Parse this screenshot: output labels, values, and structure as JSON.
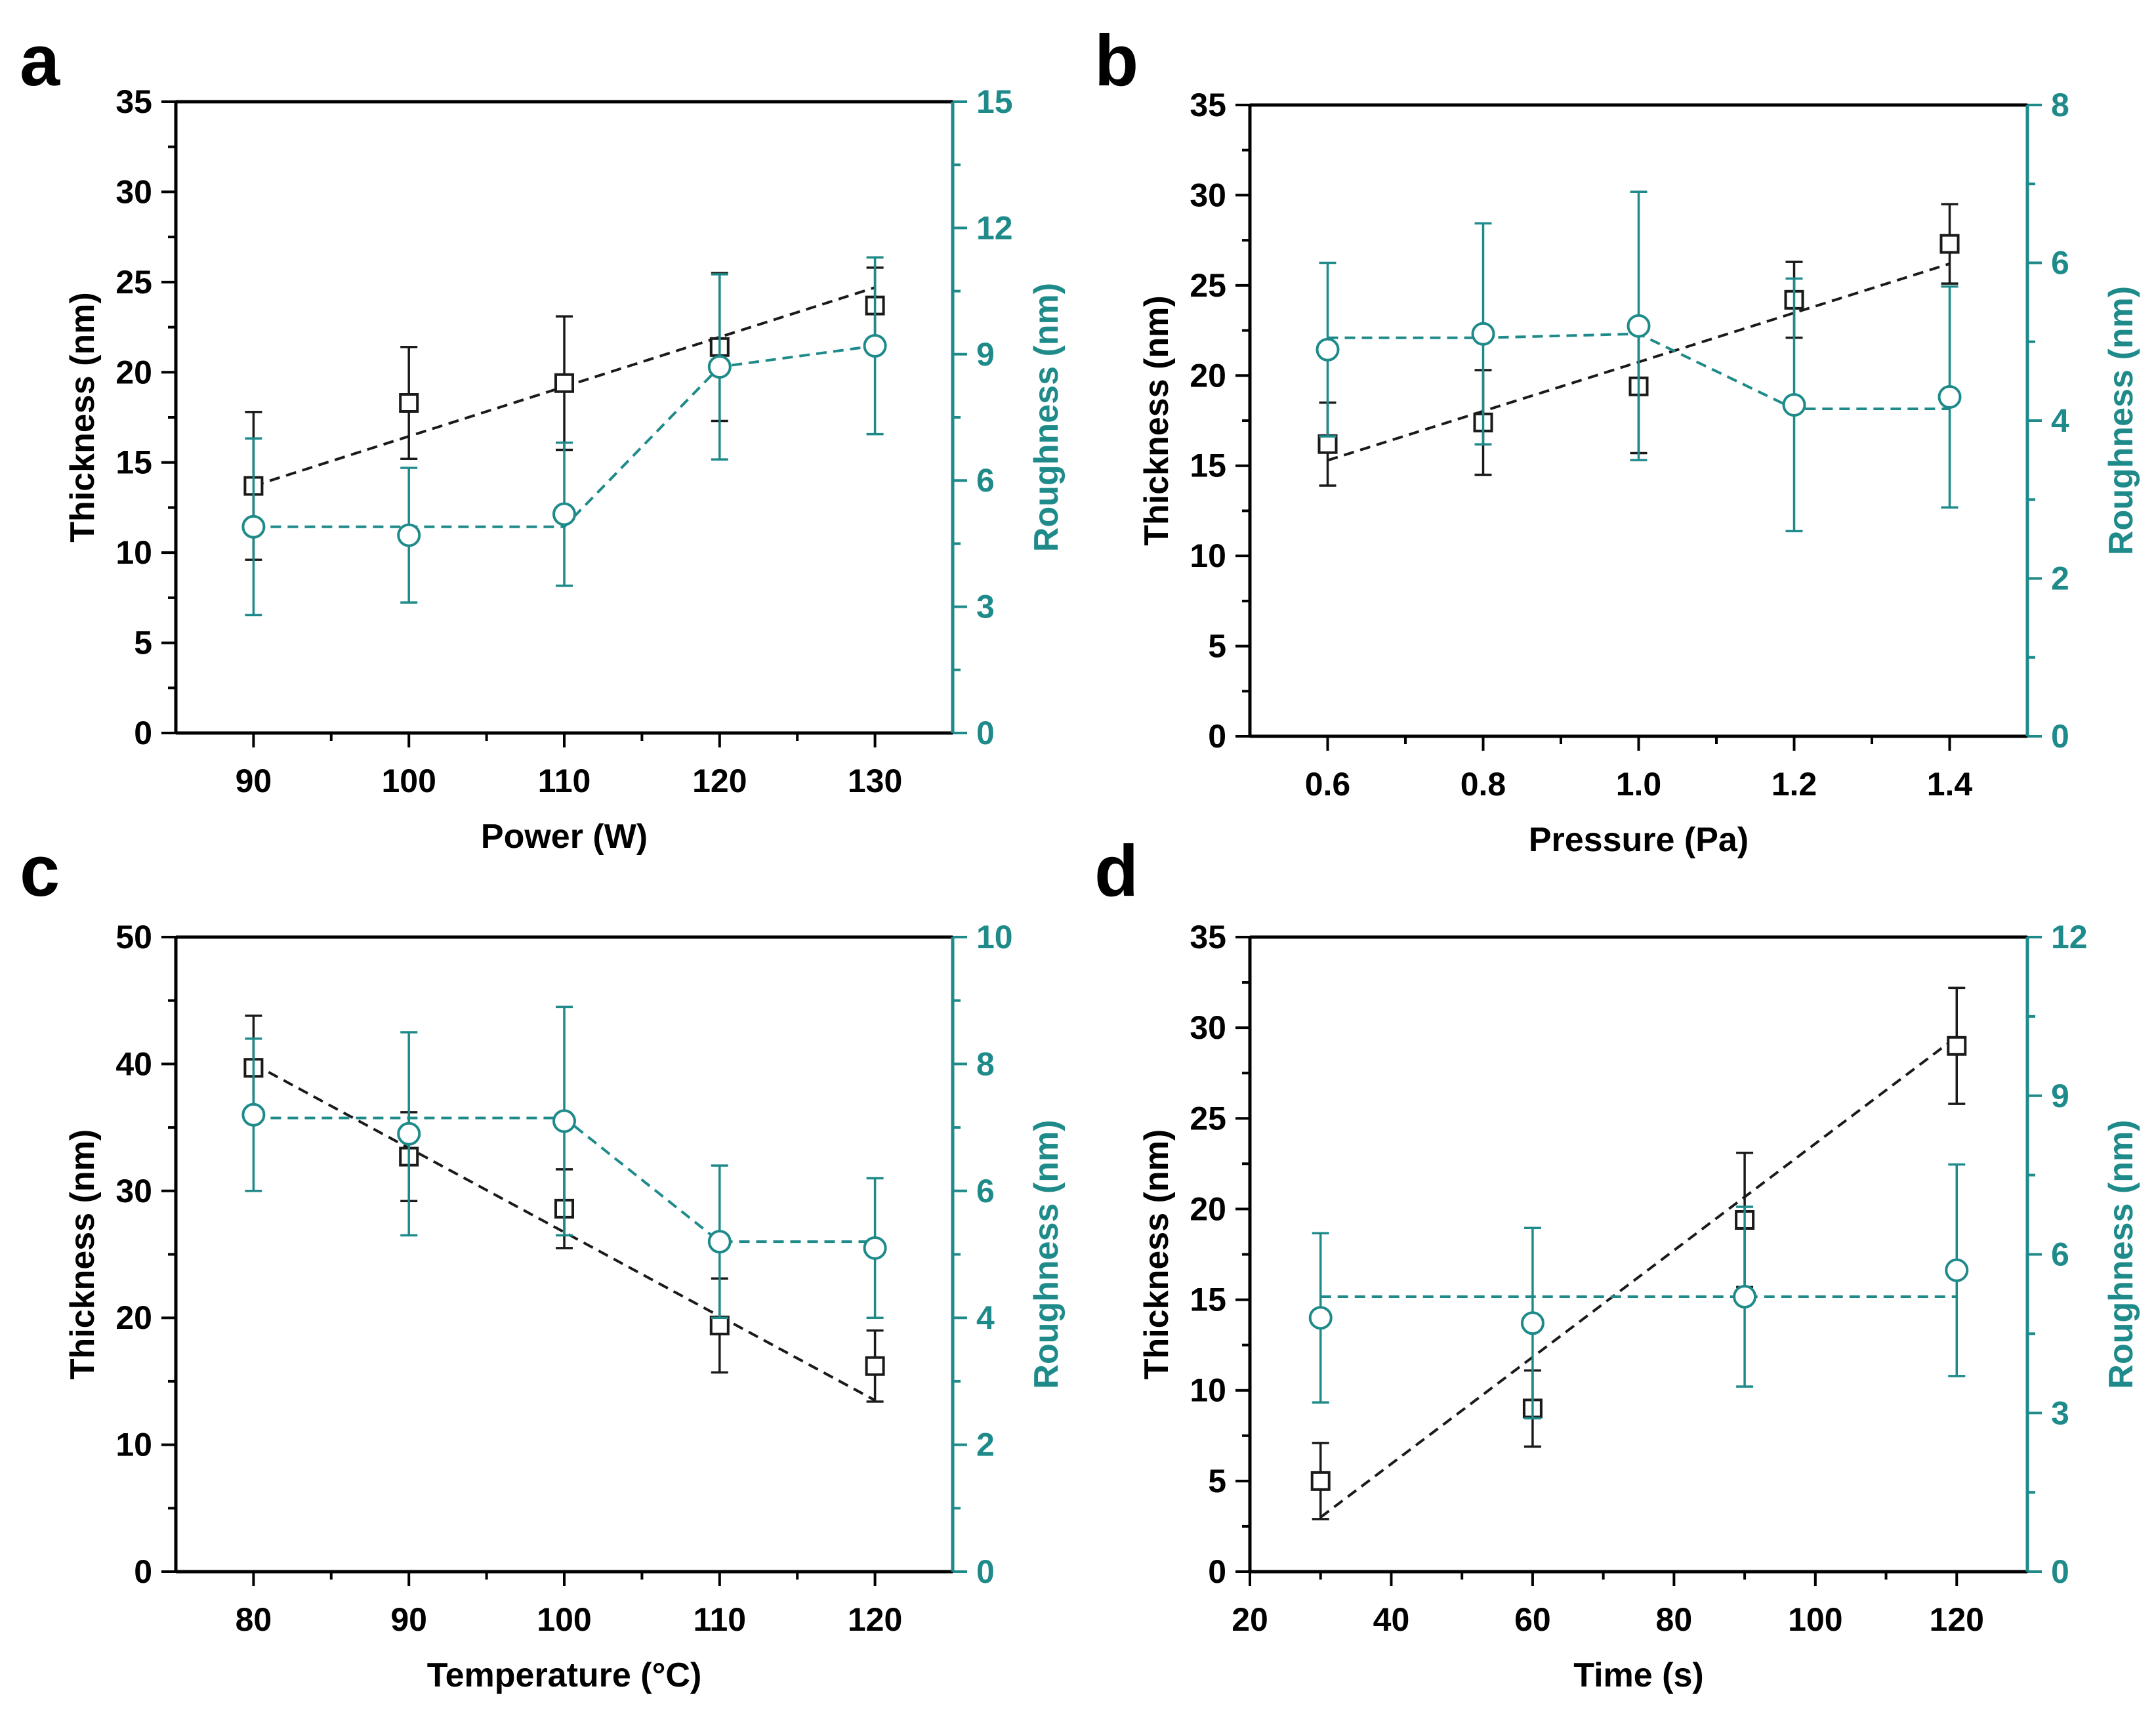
{
  "colors": {
    "thickness": "#1a1a1a",
    "roughness": "#1f8a8a"
  },
  "chart_data": [
    {
      "type": "scatter",
      "panel_label": "a",
      "xlabel": "Power (W)",
      "ylabel": "Thickness (nm)",
      "y2label": "Roughness (nm)",
      "xlim": [
        85,
        135
      ],
      "ylim": [
        0,
        35
      ],
      "y2lim": [
        0,
        15
      ],
      "xticks": [
        90,
        100,
        110,
        120,
        130
      ],
      "yticks": [
        0,
        5,
        10,
        15,
        20,
        25,
        30,
        35
      ],
      "y2ticks": [
        0,
        3,
        6,
        9,
        12,
        15
      ],
      "x": [
        90,
        100,
        110,
        120,
        130
      ],
      "series": [
        {
          "name": "Thickness",
          "axis": "left",
          "marker": "square",
          "values": [
            13.7,
            18.3,
            19.4,
            21.4,
            23.7
          ],
          "err": [
            4.1,
            3.1,
            3.7,
            4.1,
            2.1
          ],
          "fit": [
            13.7,
            24.7
          ]
        },
        {
          "name": "Roughness",
          "axis": "right",
          "marker": "circle",
          "values": [
            4.9,
            4.7,
            5.2,
            8.7,
            9.2
          ],
          "err": [
            2.1,
            1.6,
            1.7,
            2.2,
            2.1
          ],
          "line": [
            4.9,
            4.9,
            4.9,
            8.7,
            9.2
          ]
        }
      ]
    },
    {
      "type": "scatter",
      "panel_label": "b",
      "xlabel": "Pressure (Pa)",
      "ylabel": "Thickness (nm)",
      "y2label": "Roughness (nm)",
      "xlim": [
        0.5,
        1.5
      ],
      "ylim": [
        0,
        35
      ],
      "y2lim": [
        0,
        8
      ],
      "xticks": [
        0.6,
        0.8,
        1.0,
        1.2,
        1.4
      ],
      "xtick_labels": [
        "0.6",
        "0.8",
        "1.0",
        "1.2",
        "1.4"
      ],
      "yticks": [
        0,
        5,
        10,
        15,
        20,
        25,
        30,
        35
      ],
      "y2ticks": [
        0,
        2,
        4,
        6,
        8
      ],
      "x": [
        0.6,
        0.8,
        1.0,
        1.2,
        1.4
      ],
      "series": [
        {
          "name": "Thickness",
          "axis": "left",
          "marker": "square",
          "values": [
            16.2,
            17.4,
            19.4,
            24.2,
            27.3
          ],
          "err": [
            2.3,
            2.9,
            3.7,
            2.1,
            2.2
          ],
          "fit": [
            15.3,
            26.2
          ]
        },
        {
          "name": "Roughness",
          "axis": "right",
          "marker": "circle",
          "values": [
            4.9,
            5.1,
            5.2,
            4.2,
            4.3
          ],
          "err": [
            1.1,
            1.4,
            1.7,
            1.6,
            1.4
          ],
          "line": [
            5.05,
            5.05,
            5.1,
            4.15,
            4.15
          ]
        }
      ]
    },
    {
      "type": "scatter",
      "panel_label": "c",
      "xlabel": "Temperature (°C)",
      "ylabel": "Thickness (nm)",
      "y2label": "Roughness (nm)",
      "xlim": [
        75,
        125
      ],
      "ylim": [
        0,
        50
      ],
      "y2lim": [
        0,
        10
      ],
      "xticks": [
        80,
        90,
        100,
        110,
        120
      ],
      "yticks": [
        0,
        10,
        20,
        30,
        40,
        50
      ],
      "y2ticks": [
        0,
        2,
        4,
        6,
        8,
        10
      ],
      "x": [
        80,
        90,
        100,
        110,
        120
      ],
      "series": [
        {
          "name": "Thickness",
          "axis": "left",
          "marker": "square",
          "values": [
            39.7,
            32.7,
            28.6,
            19.4,
            16.2
          ],
          "err": [
            4.1,
            3.5,
            3.1,
            3.7,
            2.8
          ],
          "fit": [
            40.0,
            13.5
          ]
        },
        {
          "name": "Roughness",
          "axis": "right",
          "marker": "circle",
          "values": [
            7.2,
            6.9,
            7.1,
            5.2,
            5.1
          ],
          "err": [
            1.2,
            1.6,
            1.8,
            1.2,
            1.1
          ],
          "line": [
            7.15,
            7.15,
            7.15,
            5.2,
            5.2
          ]
        }
      ]
    },
    {
      "type": "scatter",
      "panel_label": "d",
      "xlabel": "Time (s)",
      "ylabel": "Thickness (nm)",
      "y2label": "Roughness (nm)",
      "xlim": [
        20,
        130
      ],
      "ylim": [
        0,
        35
      ],
      "y2lim": [
        0,
        12
      ],
      "xticks": [
        20,
        40,
        60,
        80,
        100,
        120
      ],
      "yticks": [
        0,
        5,
        10,
        15,
        20,
        25,
        30,
        35
      ],
      "y2ticks": [
        0,
        3,
        6,
        9,
        12
      ],
      "x": [
        30,
        60,
        90,
        120
      ],
      "series": [
        {
          "name": "Thickness",
          "axis": "left",
          "marker": "square",
          "values": [
            5.0,
            9.0,
            19.4,
            29.0
          ],
          "err": [
            2.1,
            2.1,
            3.7,
            3.2
          ],
          "fit": [
            3.0,
            29.5
          ]
        },
        {
          "name": "Roughness",
          "axis": "right",
          "marker": "circle",
          "values": [
            4.8,
            4.7,
            5.2,
            5.7
          ],
          "err": [
            1.6,
            1.8,
            1.7,
            2.0
          ],
          "line": [
            5.2,
            5.2,
            5.2,
            5.2
          ]
        }
      ]
    }
  ]
}
